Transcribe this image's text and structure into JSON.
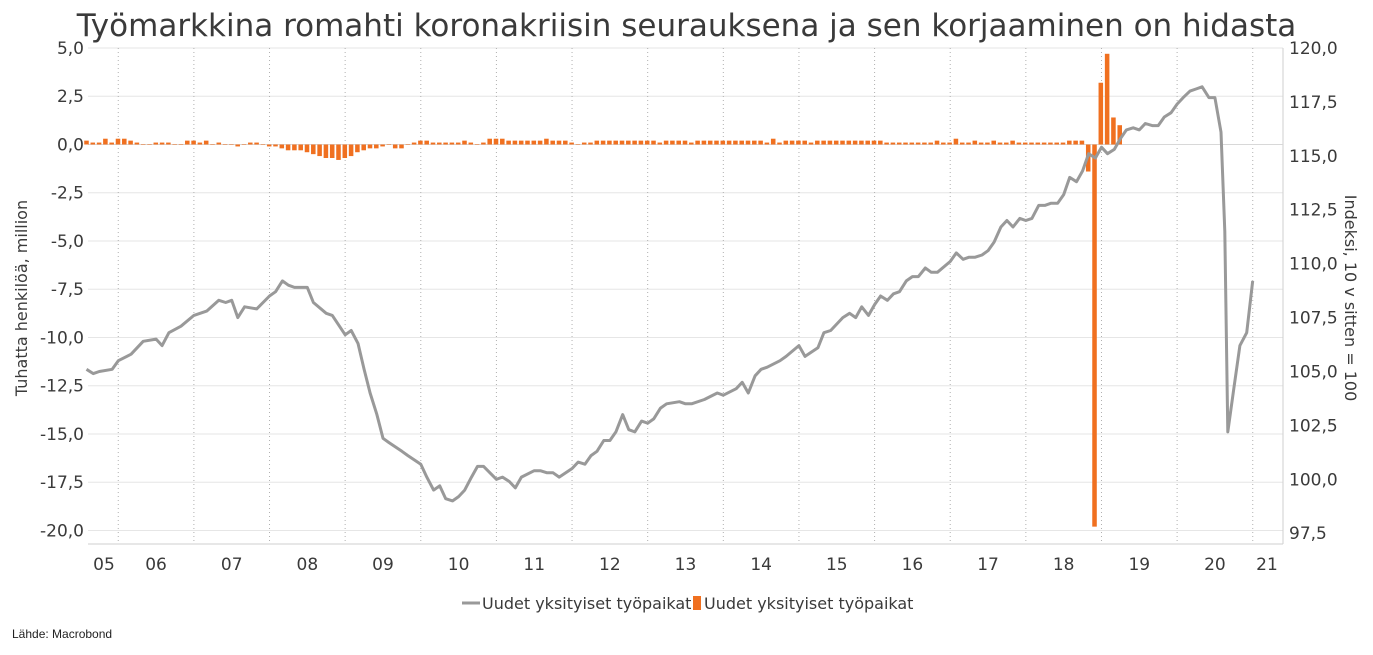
{
  "chart_data": {
    "type": "bar+line",
    "title": "Työmarkkina romahti koronakriisin seurauksena ja sen korjaaminen on hidasta",
    "ylabel_left": "Tuhatta henkilöä, million",
    "ylabel_right": "Indeksi, 10 v sitten = 100",
    "ylim_left": [
      -20.7,
      5.0
    ],
    "ylim_right": [
      97.0,
      120.0
    ],
    "yticks_left": [
      "5,0",
      "2,5",
      "0,0",
      "-2,5",
      "-5,0",
      "-7,5",
      "-10,0",
      "-12,5",
      "-15,0",
      "-17,5",
      "-20,0"
    ],
    "yticks_right": [
      "120,0",
      "117,5",
      "115,0",
      "112,5",
      "110,0",
      "107,5",
      "105,0",
      "102,5",
      "100,0",
      "97,5"
    ],
    "xticks": [
      "05",
      "06",
      "07",
      "08",
      "09",
      "10",
      "11",
      "12",
      "13",
      "14",
      "15",
      "16",
      "17",
      "18",
      "19",
      "20",
      "21"
    ],
    "x_range": [
      2005.6,
      2021.4
    ],
    "grid": true,
    "legend_position": "bottom",
    "source": "Lähde: Macrobond",
    "series": [
      {
        "name": "Uudet yksityiset työpaikat",
        "kind": "line",
        "axis": "right",
        "color": "#999999",
        "points": [
          [
            2005.58,
            105.1
          ],
          [
            2005.67,
            104.9
          ],
          [
            2005.75,
            105.0
          ],
          [
            2005.92,
            105.1
          ],
          [
            2006.0,
            105.5
          ],
          [
            2006.17,
            105.8
          ],
          [
            2006.33,
            106.4
          ],
          [
            2006.5,
            106.5
          ],
          [
            2006.58,
            106.2
          ],
          [
            2006.67,
            106.8
          ],
          [
            2006.83,
            107.1
          ],
          [
            2007.0,
            107.6
          ],
          [
            2007.17,
            107.8
          ],
          [
            2007.33,
            108.3
          ],
          [
            2007.42,
            108.2
          ],
          [
            2007.5,
            108.3
          ],
          [
            2007.58,
            107.5
          ],
          [
            2007.67,
            108.0
          ],
          [
            2007.83,
            107.9
          ],
          [
            2008.0,
            108.5
          ],
          [
            2008.08,
            108.7
          ],
          [
            2008.17,
            109.2
          ],
          [
            2008.25,
            109.0
          ],
          [
            2008.33,
            108.9
          ],
          [
            2008.5,
            108.9
          ],
          [
            2008.58,
            108.2
          ],
          [
            2008.75,
            107.7
          ],
          [
            2008.83,
            107.6
          ],
          [
            2009.0,
            106.7
          ],
          [
            2009.08,
            106.9
          ],
          [
            2009.17,
            106.3
          ],
          [
            2009.25,
            105.1
          ],
          [
            2009.33,
            104.0
          ],
          [
            2009.42,
            103.0
          ],
          [
            2009.5,
            101.9
          ],
          [
            2009.58,
            101.7
          ],
          [
            2009.75,
            101.3
          ],
          [
            2009.83,
            101.1
          ],
          [
            2010.0,
            100.7
          ],
          [
            2010.08,
            100.1
          ],
          [
            2010.17,
            99.5
          ],
          [
            2010.25,
            99.7
          ],
          [
            2010.33,
            99.1
          ],
          [
            2010.42,
            99.0
          ],
          [
            2010.5,
            99.2
          ],
          [
            2010.58,
            99.5
          ],
          [
            2010.67,
            100.1
          ],
          [
            2010.75,
            100.6
          ],
          [
            2010.83,
            100.6
          ],
          [
            2011.0,
            100.0
          ],
          [
            2011.08,
            100.1
          ],
          [
            2011.17,
            99.9
          ],
          [
            2011.25,
            99.6
          ],
          [
            2011.33,
            100.1
          ],
          [
            2011.5,
            100.4
          ],
          [
            2011.58,
            100.4
          ],
          [
            2011.67,
            100.3
          ],
          [
            2011.75,
            100.3
          ],
          [
            2011.83,
            100.1
          ],
          [
            2012.0,
            100.5
          ],
          [
            2012.08,
            100.8
          ],
          [
            2012.17,
            100.7
          ],
          [
            2012.25,
            101.1
          ],
          [
            2012.33,
            101.3
          ],
          [
            2012.42,
            101.8
          ],
          [
            2012.5,
            101.8
          ],
          [
            2012.58,
            102.2
          ],
          [
            2012.67,
            103.0
          ],
          [
            2012.75,
            102.3
          ],
          [
            2012.83,
            102.2
          ],
          [
            2012.92,
            102.7
          ],
          [
            2013.0,
            102.6
          ],
          [
            2013.08,
            102.8
          ],
          [
            2013.17,
            103.3
          ],
          [
            2013.25,
            103.5
          ],
          [
            2013.42,
            103.6
          ],
          [
            2013.5,
            103.5
          ],
          [
            2013.58,
            103.5
          ],
          [
            2013.75,
            103.7
          ],
          [
            2013.92,
            104.0
          ],
          [
            2014.0,
            103.9
          ],
          [
            2014.17,
            104.2
          ],
          [
            2014.25,
            104.5
          ],
          [
            2014.33,
            104.0
          ],
          [
            2014.42,
            104.8
          ],
          [
            2014.5,
            105.1
          ],
          [
            2014.58,
            105.2
          ],
          [
            2014.75,
            105.5
          ],
          [
            2014.83,
            105.7
          ],
          [
            2015.0,
            106.2
          ],
          [
            2015.08,
            105.7
          ],
          [
            2015.25,
            106.1
          ],
          [
            2015.33,
            106.8
          ],
          [
            2015.42,
            106.9
          ],
          [
            2015.5,
            107.2
          ],
          [
            2015.58,
            107.5
          ],
          [
            2015.67,
            107.7
          ],
          [
            2015.75,
            107.5
          ],
          [
            2015.83,
            108.0
          ],
          [
            2015.92,
            107.6
          ],
          [
            2016.0,
            108.1
          ],
          [
            2016.08,
            108.5
          ],
          [
            2016.17,
            108.3
          ],
          [
            2016.25,
            108.6
          ],
          [
            2016.33,
            108.7
          ],
          [
            2016.42,
            109.2
          ],
          [
            2016.5,
            109.4
          ],
          [
            2016.58,
            109.4
          ],
          [
            2016.67,
            109.8
          ],
          [
            2016.75,
            109.6
          ],
          [
            2016.83,
            109.6
          ],
          [
            2017.0,
            110.1
          ],
          [
            2017.08,
            110.5
          ],
          [
            2017.17,
            110.2
          ],
          [
            2017.25,
            110.3
          ],
          [
            2017.33,
            110.3
          ],
          [
            2017.42,
            110.4
          ],
          [
            2017.5,
            110.6
          ],
          [
            2017.58,
            111.0
          ],
          [
            2017.67,
            111.7
          ],
          [
            2017.75,
            112.0
          ],
          [
            2017.83,
            111.7
          ],
          [
            2017.92,
            112.1
          ],
          [
            2018.0,
            112.0
          ],
          [
            2018.08,
            112.1
          ],
          [
            2018.17,
            112.7
          ],
          [
            2018.25,
            112.7
          ],
          [
            2018.33,
            112.8
          ],
          [
            2018.42,
            112.8
          ],
          [
            2018.5,
            113.2
          ],
          [
            2018.58,
            114.0
          ],
          [
            2018.67,
            113.8
          ],
          [
            2018.75,
            114.3
          ],
          [
            2018.83,
            115.1
          ],
          [
            2018.92,
            114.9
          ],
          [
            2019.0,
            115.4
          ],
          [
            2019.08,
            115.1
          ],
          [
            2019.17,
            115.3
          ],
          [
            2019.25,
            115.8
          ],
          [
            2019.33,
            116.2
          ],
          [
            2019.42,
            116.3
          ],
          [
            2019.5,
            116.2
          ],
          [
            2019.58,
            116.5
          ],
          [
            2019.67,
            116.4
          ],
          [
            2019.75,
            116.4
          ],
          [
            2019.83,
            116.8
          ],
          [
            2019.92,
            117.0
          ],
          [
            2020.0,
            117.4
          ],
          [
            2020.08,
            117.7
          ],
          [
            2020.17,
            118.0
          ],
          [
            2020.25,
            118.1
          ],
          [
            2020.33,
            118.2
          ],
          [
            2020.42,
            117.7
          ],
          [
            2020.5,
            117.7
          ],
          [
            2020.58,
            116.1
          ],
          [
            2020.63,
            111.5
          ],
          [
            2020.67,
            102.2
          ],
          [
            2020.75,
            104.2
          ],
          [
            2020.83,
            106.2
          ],
          [
            2020.92,
            106.8
          ],
          [
            2021.0,
            109.2
          ]
        ]
      },
      {
        "name": "Uudet yksityiset työpaikat",
        "kind": "bar",
        "axis": "left",
        "color": "#f07020",
        "bar_dx": 0.0833,
        "bars_start": 2005.58,
        "values": [
          0.2,
          0.1,
          0.1,
          0.3,
          0.1,
          0.3,
          0.3,
          0.2,
          0.1,
          0.0,
          0.0,
          0.1,
          0.1,
          0.1,
          0.0,
          0.0,
          0.2,
          0.2,
          0.1,
          0.2,
          0.0,
          0.1,
          0.0,
          0.0,
          -0.1,
          0.0,
          0.1,
          0.1,
          0.0,
          -0.1,
          -0.1,
          -0.2,
          -0.3,
          -0.3,
          -0.3,
          -0.4,
          -0.5,
          -0.6,
          -0.7,
          -0.7,
          -0.8,
          -0.7,
          -0.6,
          -0.4,
          -0.3,
          -0.2,
          -0.2,
          -0.1,
          0.0,
          -0.2,
          -0.2,
          0.0,
          0.1,
          0.2,
          0.2,
          0.1,
          0.1,
          0.1,
          0.1,
          0.1,
          0.2,
          0.1,
          0.0,
          0.1,
          0.3,
          0.3,
          0.3,
          0.2,
          0.2,
          0.2,
          0.2,
          0.2,
          0.2,
          0.3,
          0.2,
          0.2,
          0.2,
          0.1,
          0.0,
          0.1,
          0.1,
          0.2,
          0.2,
          0.2,
          0.2,
          0.2,
          0.2,
          0.2,
          0.2,
          0.2,
          0.2,
          0.1,
          0.2,
          0.2,
          0.2,
          0.2,
          0.1,
          0.2,
          0.2,
          0.2,
          0.2,
          0.2,
          0.2,
          0.2,
          0.2,
          0.2,
          0.2,
          0.2,
          0.1,
          0.3,
          0.1,
          0.2,
          0.2,
          0.2,
          0.2,
          0.1,
          0.2,
          0.2,
          0.2,
          0.2,
          0.2,
          0.2,
          0.2,
          0.2,
          0.2,
          0.2,
          0.2,
          0.1,
          0.1,
          0.1,
          0.1,
          0.1,
          0.1,
          0.1,
          0.1,
          0.2,
          0.1,
          0.1,
          0.3,
          0.1,
          0.1,
          0.2,
          0.1,
          0.1,
          0.2,
          0.1,
          0.1,
          0.2,
          0.1,
          0.1,
          0.1,
          0.1,
          0.1,
          0.1,
          0.1,
          0.1,
          0.2,
          0.2,
          0.2,
          -1.4,
          -19.8,
          3.2,
          4.7,
          1.4,
          1.0
        ]
      }
    ]
  }
}
